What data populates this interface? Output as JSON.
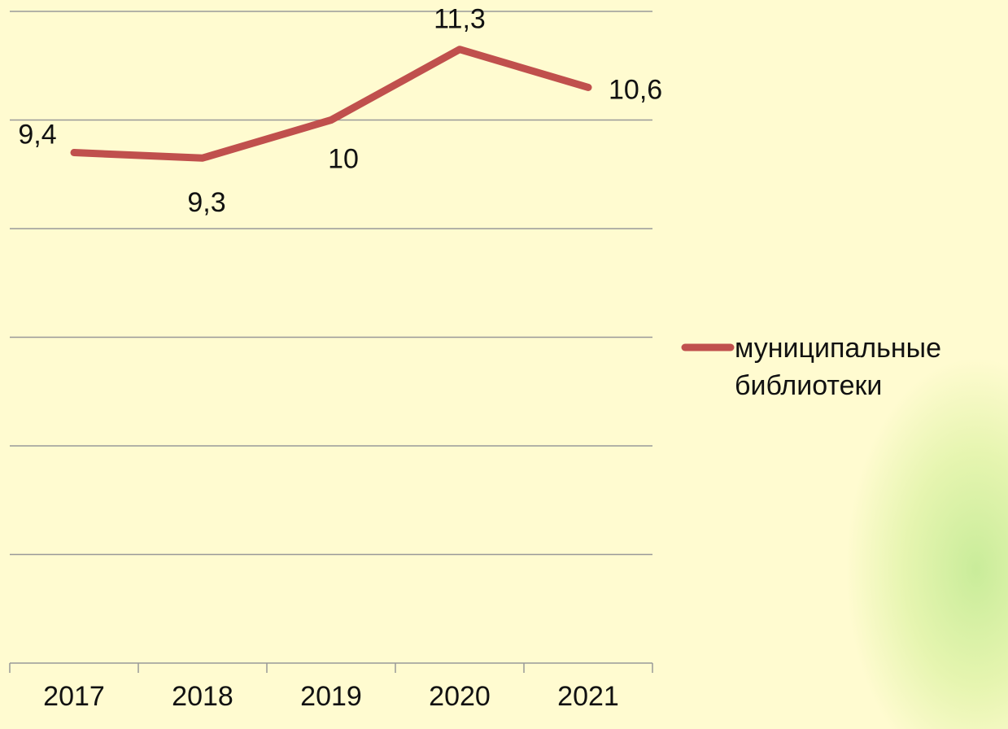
{
  "chart_data": {
    "type": "line",
    "categories": [
      "2017",
      "2018",
      "2019",
      "2020",
      "2021"
    ],
    "series": [
      {
        "name": "муниципальные библиотеки",
        "color": "#c0504d",
        "values": [
          9.4,
          9.3,
          10,
          11.3,
          10.6
        ],
        "value_labels": [
          "9,4",
          "9,3",
          "10",
          "11,3",
          "10,6"
        ]
      }
    ],
    "ylim": [
      0,
      12
    ],
    "yticks": [
      0,
      2,
      4,
      6,
      8,
      10,
      12
    ],
    "grid": true,
    "legend": "right"
  }
}
